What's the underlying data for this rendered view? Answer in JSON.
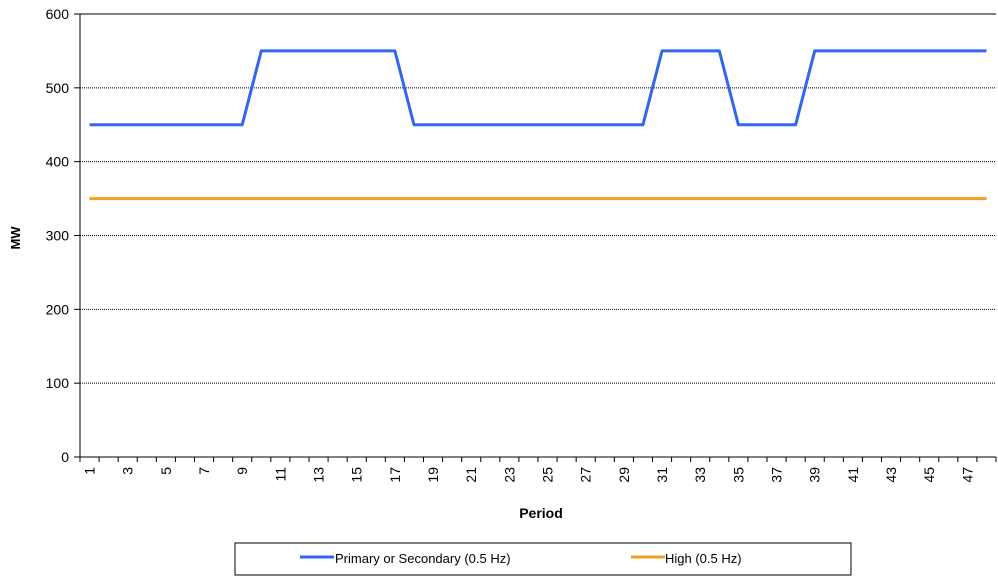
{
  "chart_data": {
    "type": "line",
    "title": "",
    "xlabel": "Period",
    "ylabel": "MW",
    "ylim": [
      0,
      600
    ],
    "yticks": [
      0,
      100,
      200,
      300,
      400,
      500,
      600
    ],
    "grid": {
      "horizontal": true,
      "style": "dotted"
    },
    "legend_position": "bottom",
    "x": [
      1,
      2,
      3,
      4,
      5,
      6,
      7,
      8,
      9,
      10,
      11,
      12,
      13,
      14,
      15,
      16,
      17,
      18,
      19,
      20,
      21,
      22,
      23,
      24,
      25,
      26,
      27,
      28,
      29,
      30,
      31,
      32,
      33,
      34,
      35,
      36,
      37,
      38,
      39,
      40,
      41,
      42,
      43,
      44,
      45,
      46,
      47,
      48
    ],
    "x_tick_labels": [
      "1",
      "3",
      "5",
      "7",
      "9",
      "11",
      "13",
      "15",
      "17",
      "19",
      "21",
      "23",
      "25",
      "27",
      "29",
      "31",
      "33",
      "35",
      "37",
      "39",
      "41",
      "43",
      "45",
      "47"
    ],
    "series": [
      {
        "name": "Primary or Secondary (0.5 Hz)",
        "color": "#3366ee",
        "values": [
          450,
          450,
          450,
          450,
          450,
          450,
          450,
          450,
          450,
          550,
          550,
          550,
          550,
          550,
          550,
          550,
          550,
          450,
          450,
          450,
          450,
          450,
          450,
          450,
          450,
          450,
          450,
          450,
          450,
          450,
          550,
          550,
          550,
          550,
          450,
          450,
          450,
          450,
          550,
          550,
          550,
          550,
          550,
          550,
          550,
          550,
          550,
          550
        ]
      },
      {
        "name": "High (0.5 Hz)",
        "color": "#f0a020",
        "values": [
          350,
          350,
          350,
          350,
          350,
          350,
          350,
          350,
          350,
          350,
          350,
          350,
          350,
          350,
          350,
          350,
          350,
          350,
          350,
          350,
          350,
          350,
          350,
          350,
          350,
          350,
          350,
          350,
          350,
          350,
          350,
          350,
          350,
          350,
          350,
          350,
          350,
          350,
          350,
          350,
          350,
          350,
          350,
          350,
          350,
          350,
          350,
          350
        ]
      }
    ]
  }
}
